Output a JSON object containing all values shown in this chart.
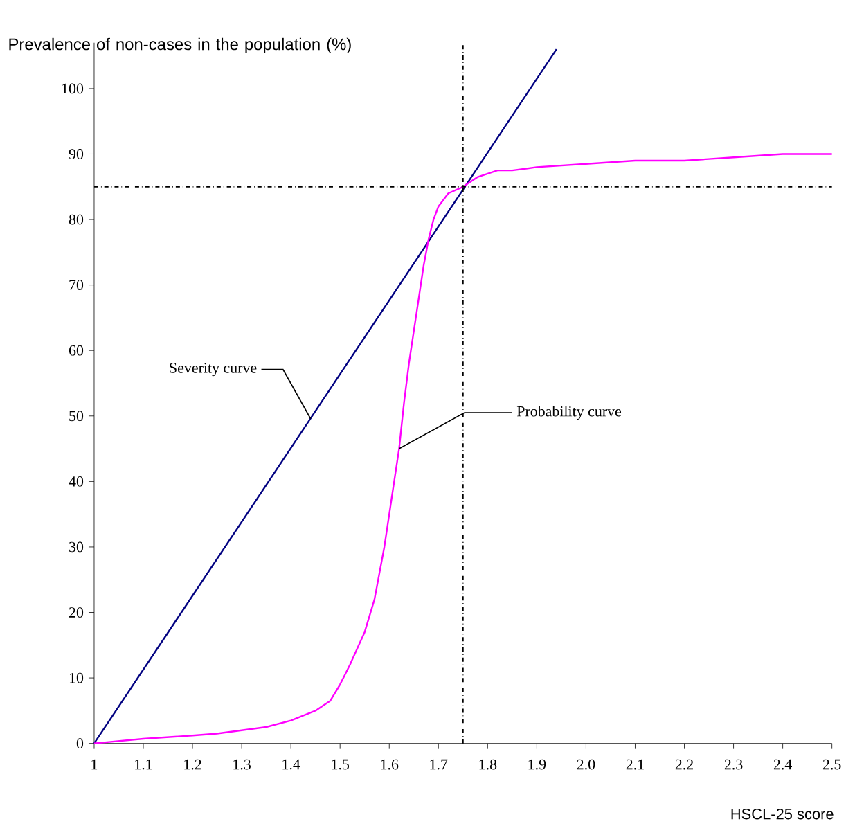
{
  "chart_data": {
    "type": "line",
    "ylabel": "Prevalence of non-cases in the population (%)",
    "xlabel": "HSCL-25 score",
    "series": [
      {
        "color": "#000080",
        "x": [
          1,
          1.94
        ],
        "values": [
          0,
          106
        ]
      },
      {
        "color": "#ff00ff",
        "x": [
          1,
          1.1,
          1.2,
          1.25,
          1.3,
          1.35,
          1.4,
          1.45,
          1.48,
          1.5,
          1.52,
          1.55,
          1.57,
          1.59,
          1.6,
          1.61,
          1.62,
          1.63,
          1.64,
          1.65,
          1.66,
          1.67,
          1.68,
          1.69,
          1.7,
          1.72,
          1.75,
          1.78,
          1.82,
          1.85,
          1.9,
          2.0,
          2.1,
          2.2,
          2.3,
          2.4,
          2.5
        ],
        "values": [
          0,
          0.7,
          1.2,
          1.5,
          2,
          2.5,
          3.5,
          5,
          6.5,
          9,
          12,
          17,
          22,
          30,
          35,
          40,
          45,
          52,
          58,
          63,
          68,
          73,
          77,
          80,
          82,
          84,
          85,
          86.5,
          87.5,
          87.5,
          88,
          88.5,
          89,
          89,
          89.5,
          90,
          90
        ]
      }
    ],
    "xlim": [
      1,
      2.5
    ],
    "ylim": [
      0,
      107
    ],
    "xticks": [
      {
        "value": 1,
        "label": "1"
      },
      1.1,
      1.2,
      1.3,
      1.4,
      1.5,
      1.6,
      1.7,
      1.8,
      1.9,
      {
        "value": 2,
        "label": "2.0"
      },
      2.1,
      2.2,
      2.3,
      2.4,
      2.5
    ],
    "yticks": [
      0,
      10,
      20,
      30,
      40,
      50,
      60,
      70,
      80,
      90,
      100
    ],
    "ref_lines": [
      {
        "axis": "x",
        "value": 1.75,
        "color": "#000000",
        "line_style": "dashed"
      },
      {
        "axis": "y",
        "value": 85,
        "color": "#000000",
        "line_style": "dashed"
      }
    ],
    "annotations": [
      {
        "text": "Severity curve",
        "x": 1.44,
        "y": 49.6
      },
      {
        "text": "Probability curve",
        "x": 1.62,
        "y": 45
      }
    ],
    "grid": false,
    "marker": "none",
    "line_style": "solid"
  }
}
